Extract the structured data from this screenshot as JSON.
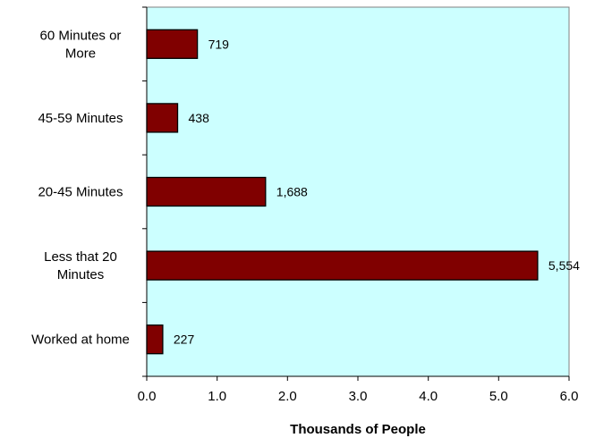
{
  "chart_data": {
    "type": "bar",
    "orientation": "horizontal",
    "categories": [
      [
        "60 Minutes or",
        "More"
      ],
      [
        "45-59 Minutes"
      ],
      [
        "20-45 Minutes"
      ],
      [
        "Less that 20",
        "Minutes"
      ],
      [
        "Worked at home"
      ]
    ],
    "values": [
      0.719,
      0.438,
      1.688,
      5.554,
      0.227
    ],
    "data_labels": [
      "719",
      "438",
      "1,688",
      "5,554",
      "227"
    ],
    "x_ticks": [
      "0.0",
      "1.0",
      "2.0",
      "3.0",
      "4.0",
      "5.0",
      "6.0"
    ],
    "xlim": [
      0,
      6
    ],
    "xlabel": "Thousands of People",
    "ylabel": "",
    "title": "",
    "grid": false,
    "legend": "none",
    "colors": {
      "plot_background": "#ccffff",
      "bar_fill": "#800000",
      "bar_stroke": "#000000",
      "axis": "#000000",
      "plot_border": "#808080"
    }
  }
}
